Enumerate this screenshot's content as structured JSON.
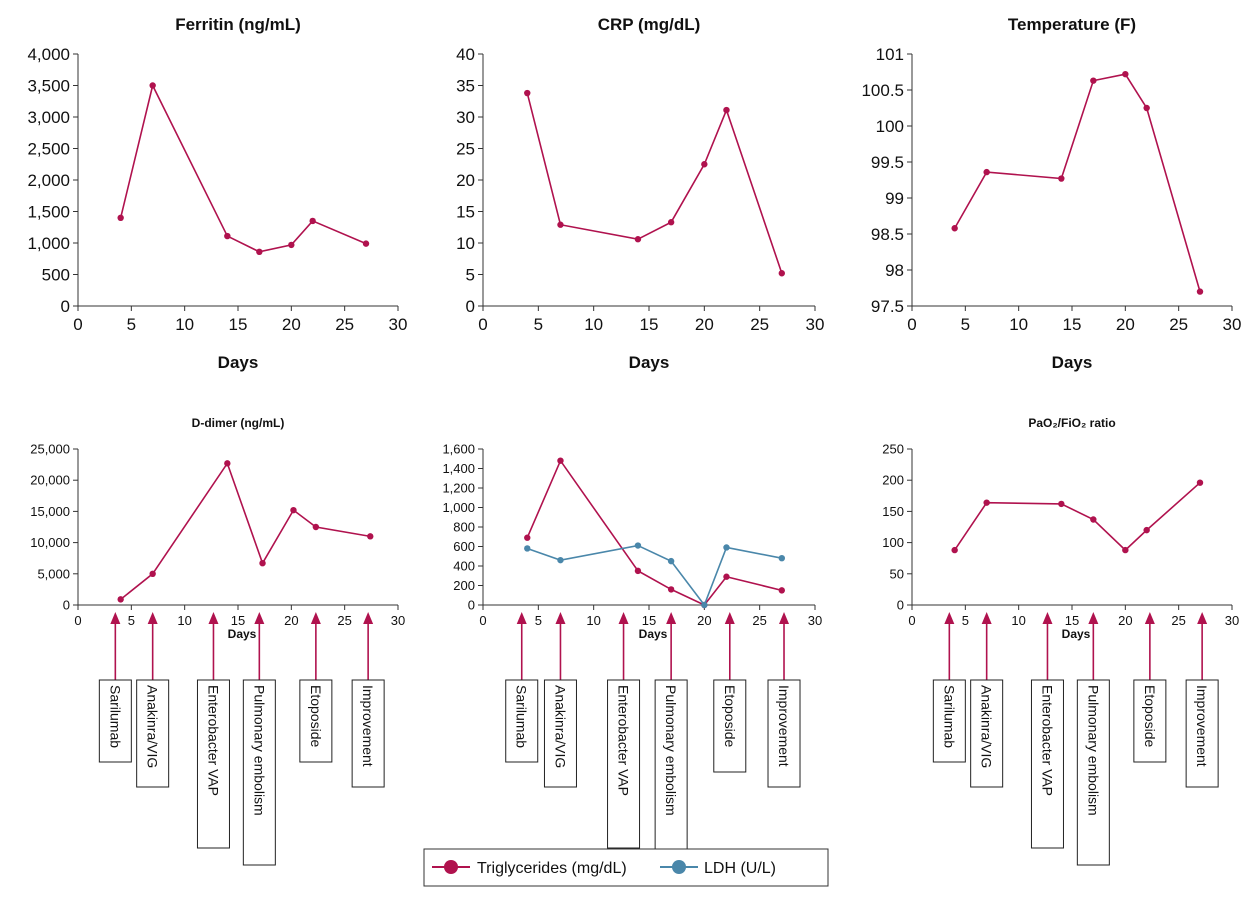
{
  "colors": {
    "crimson": "#b0124e",
    "blue": "#4a87aa"
  },
  "xlabel": "Days",
  "events": [
    "Sarilumab",
    "Anakinra/VIG",
    "Enterobacter VAP",
    "Pulmonary embolism",
    "Etoposide",
    "Improvement"
  ],
  "legend": [
    {
      "label": "Triglycerides (mg/dL)",
      "color": "#b0124e"
    },
    {
      "label": "LDH (U/L)",
      "color": "#4a87aa"
    }
  ],
  "chart_data": [
    {
      "type": "line",
      "title": "Ferritin (ng/mL)",
      "xlabel": "Days",
      "xlim": [
        0,
        30
      ],
      "xticks": [
        "0",
        "5",
        "10",
        "15",
        "20",
        "25",
        "30"
      ],
      "ylim": [
        0,
        4000
      ],
      "yticks": [
        "0",
        "500",
        "1,000",
        "1,500",
        "2,000",
        "2,500",
        "3,000",
        "3,500",
        "4,000"
      ],
      "series": [
        {
          "color": "#b0124e",
          "x": [
            4,
            7,
            14,
            17,
            20,
            22,
            27
          ],
          "y": [
            1400,
            3500,
            1110,
            860,
            970,
            1350,
            990
          ]
        }
      ]
    },
    {
      "type": "line",
      "title": "CRP (mg/dL)",
      "xlabel": "Days",
      "xlim": [
        0,
        30
      ],
      "xticks": [
        "0",
        "5",
        "10",
        "15",
        "20",
        "25",
        "30"
      ],
      "ylim": [
        0,
        40
      ],
      "yticks": [
        "0",
        "5",
        "10",
        "15",
        "20",
        "25",
        "30",
        "35",
        "40"
      ],
      "series": [
        {
          "color": "#b0124e",
          "x": [
            4,
            7,
            14,
            17,
            20,
            22,
            27
          ],
          "y": [
            33.8,
            12.9,
            10.6,
            13.3,
            22.5,
            31.1,
            5.2
          ]
        }
      ]
    },
    {
      "type": "line",
      "title": "Temperature (F)",
      "xlabel": "Days",
      "xlim": [
        0,
        30
      ],
      "xticks": [
        "0",
        "5",
        "10",
        "15",
        "20",
        "25",
        "30"
      ],
      "ylim": [
        97.5,
        101
      ],
      "yticks": [
        "97.5",
        "98",
        "98.5",
        "99",
        "99.5",
        "100",
        "100.5",
        "101"
      ],
      "series": [
        {
          "color": "#b0124e",
          "x": [
            4,
            7,
            14,
            17,
            20,
            22,
            27
          ],
          "y": [
            98.58,
            99.36,
            99.27,
            100.63,
            100.72,
            100.25,
            97.7
          ]
        }
      ]
    },
    {
      "type": "line",
      "title": "D-dimer (ng/mL)",
      "xlabel": "Days",
      "xlim": [
        0,
        30
      ],
      "xticks": [
        "0",
        "5",
        "10",
        "15",
        "20",
        "25",
        "30"
      ],
      "ylim": [
        0,
        25000
      ],
      "yticks": [
        "0",
        "5,000",
        "10,000",
        "15,000",
        "20,000",
        "25,000"
      ],
      "series": [
        {
          "color": "#b0124e",
          "x": [
            4,
            7,
            14,
            17.3,
            20.2,
            22.3,
            27.4
          ],
          "y": [
            900,
            5000,
            22700,
            6700,
            15200,
            12500,
            11000
          ]
        }
      ]
    },
    {
      "type": "line",
      "title": "",
      "xlabel": "Days",
      "xlim": [
        0,
        30
      ],
      "xticks": [
        "0",
        "5",
        "10",
        "15",
        "20",
        "25",
        "30"
      ],
      "ylim": [
        0,
        1600
      ],
      "yticks": [
        "0",
        "200",
        "400",
        "600",
        "800",
        "1,000",
        "1,200",
        "1,400",
        "1,600"
      ],
      "series": [
        {
          "name": "Triglycerides (mg/dL)",
          "color": "#b0124e",
          "x": [
            4,
            7,
            14,
            17,
            20,
            22,
            27
          ],
          "y": [
            690,
            1480,
            350,
            160,
            0,
            290,
            150
          ]
        },
        {
          "name": "LDH (U/L)",
          "color": "#4a87aa",
          "x": [
            4,
            7,
            14,
            17,
            20,
            22,
            27
          ],
          "y": [
            580,
            460,
            610,
            450,
            0,
            590,
            480
          ]
        }
      ]
    },
    {
      "type": "line",
      "title": "PaO₂/FiO₂ ratio",
      "xlabel": "Days",
      "xlim": [
        0,
        30
      ],
      "xticks": [
        "0",
        "5",
        "10",
        "15",
        "20",
        "25",
        "30"
      ],
      "ylim": [
        0,
        250
      ],
      "yticks": [
        "0",
        "50",
        "100",
        "150",
        "200",
        "250"
      ],
      "series": [
        {
          "color": "#b0124e",
          "x": [
            4,
            7,
            14,
            17,
            20,
            22,
            27
          ],
          "y": [
            88,
            164,
            162,
            137,
            88,
            120,
            196
          ]
        }
      ]
    }
  ]
}
